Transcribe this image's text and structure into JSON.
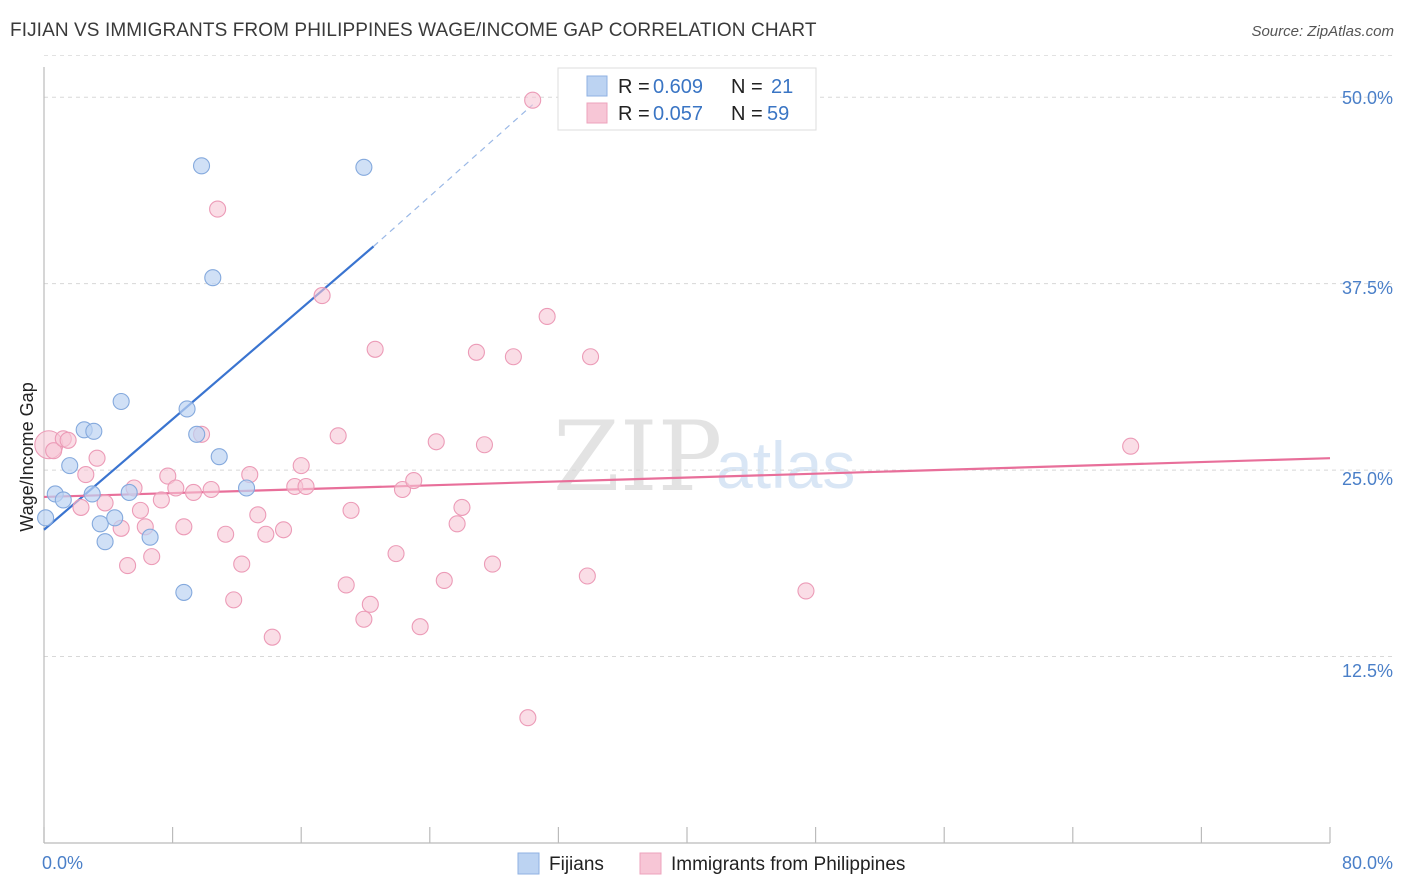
{
  "title": "FIJIAN VS IMMIGRANTS FROM PHILIPPINES WAGE/INCOME GAP CORRELATION CHART",
  "source": "Source: ZipAtlas.com",
  "watermark": {
    "zip": "ZIP",
    "atlas": "atlas"
  },
  "colors": {
    "blue": "#4a7fd0",
    "pink": "#e86f9a",
    "blue_fill": "#bcd3f2",
    "pink_fill": "#f7c6d6"
  },
  "legend": {
    "rows": [
      {
        "r_label": "R =",
        "r": "0.609",
        "n_label": "N =",
        "n": "21"
      },
      {
        "r_label": "R =",
        "r": "0.057",
        "n_label": "N =",
        "n": "59"
      }
    ],
    "bottom": [
      "Fijians",
      "Immigrants from Philippines"
    ]
  },
  "chart_data": {
    "type": "scatter",
    "xlabel": "",
    "ylabel": "Wage/Income Gap",
    "xlim": [
      0,
      80
    ],
    "ylim": [
      0,
      53.5
    ],
    "x_tick_labels": [
      "0.0%",
      "80.0%"
    ],
    "y_ticks": [
      12.5,
      25.0,
      37.5,
      50.0
    ],
    "y_tick_labels": [
      "12.5%",
      "25.0%",
      "37.5%",
      "50.0%"
    ],
    "series": [
      {
        "name": "Fijians",
        "r": 0.609,
        "n": 21,
        "trend": {
          "x0": 0,
          "y0": 21.0,
          "x1": 20.5,
          "y1": 40.0,
          "dash_to_x": 30.4,
          "dash_to_y": 49.5
        },
        "points": [
          [
            0.1,
            21.8
          ],
          [
            0.7,
            23.4
          ],
          [
            1.2,
            23.0
          ],
          [
            1.6,
            25.3
          ],
          [
            2.5,
            27.7
          ],
          [
            3.0,
            23.4
          ],
          [
            3.1,
            27.6
          ],
          [
            3.5,
            21.4
          ],
          [
            3.8,
            20.2
          ],
          [
            4.4,
            21.8
          ],
          [
            4.8,
            29.6
          ],
          [
            5.3,
            23.5
          ],
          [
            6.6,
            20.5
          ],
          [
            8.7,
            16.8
          ],
          [
            8.9,
            29.1
          ],
          [
            9.5,
            27.4
          ],
          [
            9.8,
            45.4
          ],
          [
            10.5,
            37.9
          ],
          [
            10.9,
            25.9
          ],
          [
            12.6,
            23.8
          ],
          [
            19.9,
            45.3
          ]
        ]
      },
      {
        "name": "Immigrants from Philippines",
        "r": 0.057,
        "n": 59,
        "trend": {
          "x0": 0,
          "y0": 23.2,
          "x1": 80,
          "y1": 25.8
        },
        "points": [
          [
            0.3,
            26.7
          ],
          [
            0.6,
            26.3
          ],
          [
            1.2,
            27.1
          ],
          [
            1.5,
            27.0
          ],
          [
            2.3,
            22.5
          ],
          [
            2.6,
            24.7
          ],
          [
            3.3,
            25.8
          ],
          [
            3.8,
            22.8
          ],
          [
            4.8,
            21.1
          ],
          [
            5.2,
            18.6
          ],
          [
            5.6,
            23.8
          ],
          [
            6.0,
            22.3
          ],
          [
            6.3,
            21.2
          ],
          [
            6.7,
            19.2
          ],
          [
            7.3,
            23.0
          ],
          [
            7.7,
            24.6
          ],
          [
            8.2,
            23.8
          ],
          [
            8.7,
            21.2
          ],
          [
            9.3,
            23.5
          ],
          [
            9.8,
            27.4
          ],
          [
            10.4,
            23.7
          ],
          [
            10.8,
            42.5
          ],
          [
            11.3,
            20.7
          ],
          [
            11.8,
            16.3
          ],
          [
            12.3,
            18.7
          ],
          [
            12.8,
            24.7
          ],
          [
            13.3,
            22.0
          ],
          [
            13.8,
            20.7
          ],
          [
            14.2,
            13.8
          ],
          [
            14.9,
            21.0
          ],
          [
            15.6,
            23.9
          ],
          [
            16.0,
            25.3
          ],
          [
            16.3,
            23.9
          ],
          [
            17.3,
            36.7
          ],
          [
            18.3,
            27.3
          ],
          [
            18.8,
            17.3
          ],
          [
            19.1,
            22.3
          ],
          [
            19.9,
            15.0
          ],
          [
            20.3,
            16.0
          ],
          [
            20.6,
            33.1
          ],
          [
            21.9,
            19.4
          ],
          [
            22.3,
            23.7
          ],
          [
            23.0,
            24.3
          ],
          [
            23.4,
            14.5
          ],
          [
            24.4,
            26.9
          ],
          [
            24.9,
            17.6
          ],
          [
            25.7,
            21.4
          ],
          [
            26.0,
            22.5
          ],
          [
            26.9,
            32.9
          ],
          [
            27.4,
            26.7
          ],
          [
            27.9,
            18.7
          ],
          [
            29.2,
            32.6
          ],
          [
            30.1,
            8.4
          ],
          [
            31.3,
            35.3
          ],
          [
            33.8,
            17.9
          ],
          [
            34.0,
            32.6
          ],
          [
            47.4,
            16.9
          ],
          [
            67.6,
            26.6
          ],
          [
            30.4,
            49.8
          ]
        ]
      }
    ]
  }
}
